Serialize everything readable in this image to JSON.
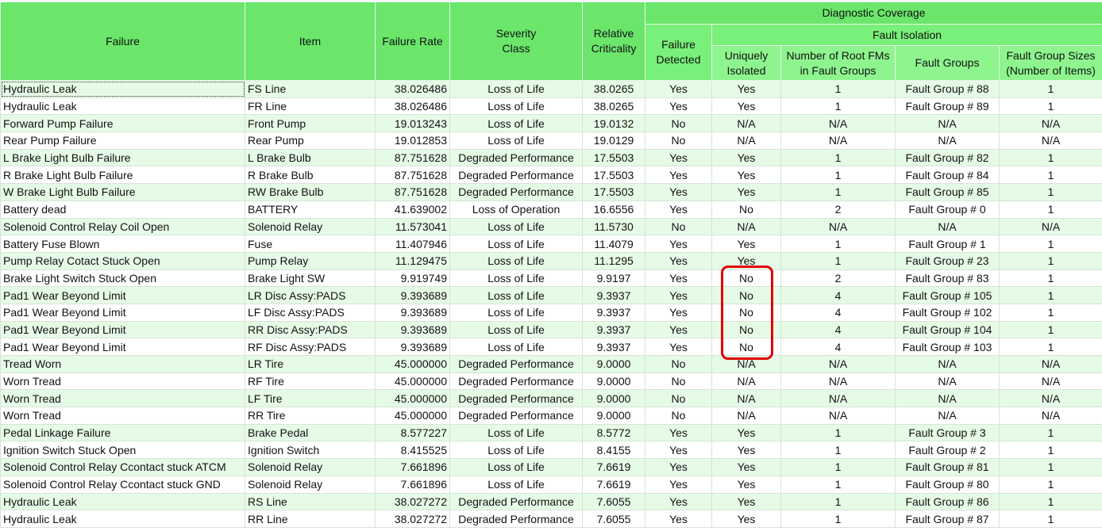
{
  "header": {
    "failure": "Failure",
    "item": "Item",
    "failure_rate": "Failure Rate",
    "severity_class": "Severity Class",
    "relative_criticality": "Relative Criticality",
    "diagnostic_coverage": "Diagnostic Coverage",
    "failure_detected": "Failure Detected",
    "fault_isolation": "Fault Isolation",
    "uniquely_isolated": "Uniquely Isolated",
    "num_root_fms": "Number of Root FMs in Fault Groups",
    "fault_groups": "Fault Groups",
    "fault_group_sizes": "Fault Group Sizes (Number of Items)"
  },
  "colors": {
    "header": "#6be66b",
    "row_alt": "#e6fbe6",
    "highlight": "#e00000"
  },
  "rows": [
    [
      "Hydraulic Leak",
      "FS Line",
      "38.026486",
      "Loss of Life",
      "38.0265",
      "Yes",
      "Yes",
      "1",
      "Fault Group # 88",
      "1"
    ],
    [
      "Hydraulic Leak",
      "FR Line",
      "38.026486",
      "Loss of Life",
      "38.0265",
      "Yes",
      "Yes",
      "1",
      "Fault Group # 89",
      "1"
    ],
    [
      "Forward Pump Failure",
      "Front Pump",
      "19.013243",
      "Loss of Life",
      "19.0132",
      "No",
      "N/A",
      "N/A",
      "N/A",
      "N/A"
    ],
    [
      "Rear Pump Failure",
      "Rear Pump",
      "19.012853",
      "Loss of Life",
      "19.0129",
      "No",
      "N/A",
      "N/A",
      "N/A",
      "N/A"
    ],
    [
      "L Brake Light Bulb Failure",
      "L Brake Bulb",
      "87.751628",
      "Degraded Performance",
      "17.5503",
      "Yes",
      "Yes",
      "1",
      "Fault Group # 82",
      "1"
    ],
    [
      "R Brake Light Bulb Failure",
      "R Brake Bulb",
      "87.751628",
      "Degraded Performance",
      "17.5503",
      "Yes",
      "Yes",
      "1",
      "Fault Group # 84",
      "1"
    ],
    [
      "W Brake Light Bulb Failure",
      "RW Brake Bulb",
      "87.751628",
      "Degraded Performance",
      "17.5503",
      "Yes",
      "Yes",
      "1",
      "Fault Group # 85",
      "1"
    ],
    [
      "Battery dead",
      "BATTERY",
      "41.639002",
      "Loss of Operation",
      "16.6556",
      "Yes",
      "No",
      "2",
      "Fault Group # 0",
      "1"
    ],
    [
      "Solenoid Control Relay Coil Open",
      "Solenoid Relay",
      "11.573041",
      "Loss of Life",
      "11.5730",
      "No",
      "N/A",
      "N/A",
      "N/A",
      "N/A"
    ],
    [
      "Battery Fuse Blown",
      "Fuse",
      "11.407946",
      "Loss of Life",
      "11.4079",
      "Yes",
      "Yes",
      "1",
      "Fault Group # 1",
      "1"
    ],
    [
      "Pump Relay Cotact Stuck Open",
      "Pump Relay",
      "11.129475",
      "Loss of Life",
      "11.1295",
      "Yes",
      "Yes",
      "1",
      "Fault Group # 23",
      "1"
    ],
    [
      "Brake Light Switch Stuck Open",
      "Brake Light SW",
      "9.919749",
      "Loss of Life",
      "9.9197",
      "Yes",
      "No",
      "2",
      "Fault Group # 83",
      "1"
    ],
    [
      "Pad1 Wear Beyond Limit",
      "LR Disc Assy:PADS",
      "9.393689",
      "Loss of Life",
      "9.3937",
      "Yes",
      "No",
      "4",
      "Fault Group # 105",
      "1"
    ],
    [
      "Pad1 Wear Beyond Limit",
      "LF Disc Assy:PADS",
      "9.393689",
      "Loss of Life",
      "9.3937",
      "Yes",
      "No",
      "4",
      "Fault Group # 102",
      "1"
    ],
    [
      "Pad1 Wear Beyond Limit",
      "RR Disc Assy:PADS",
      "9.393689",
      "Loss of Life",
      "9.3937",
      "Yes",
      "No",
      "4",
      "Fault Group # 104",
      "1"
    ],
    [
      "Pad1 Wear Beyond Limit",
      "RF Disc Assy:PADS",
      "9.393689",
      "Loss of Life",
      "9.3937",
      "Yes",
      "No",
      "4",
      "Fault Group # 103",
      "1"
    ],
    [
      "Tread Worn",
      "LR Tire",
      "45.000000",
      "Degraded Performance",
      "9.0000",
      "No",
      "N/A",
      "N/A",
      "N/A",
      "N/A"
    ],
    [
      "Worn Tread",
      "RF Tire",
      "45.000000",
      "Degraded Performance",
      "9.0000",
      "No",
      "N/A",
      "N/A",
      "N/A",
      "N/A"
    ],
    [
      "Worn Tread",
      "LF Tire",
      "45.000000",
      "Degraded Performance",
      "9.0000",
      "No",
      "N/A",
      "N/A",
      "N/A",
      "N/A"
    ],
    [
      "Worn Tread",
      "RR Tire",
      "45.000000",
      "Degraded Performance",
      "9.0000",
      "No",
      "N/A",
      "N/A",
      "N/A",
      "N/A"
    ],
    [
      "Pedal Linkage Failure",
      "Brake Pedal",
      "8.577227",
      "Loss of Life",
      "8.5772",
      "Yes",
      "Yes",
      "1",
      "Fault Group # 3",
      "1"
    ],
    [
      "Ignition Switch Stuck Open",
      "Ignition Switch",
      "8.415525",
      "Loss of Life",
      "8.4155",
      "Yes",
      "Yes",
      "1",
      "Fault Group # 2",
      "1"
    ],
    [
      "Solenoid Control Relay Ccontact stuck ATCM",
      "Solenoid Relay",
      "7.661896",
      "Loss of Life",
      "7.6619",
      "Yes",
      "Yes",
      "1",
      "Fault Group # 81",
      "1"
    ],
    [
      "Solenoid Control Relay Ccontact stuck GND",
      "Solenoid Relay",
      "7.661896",
      "Loss of Life",
      "7.6619",
      "Yes",
      "Yes",
      "1",
      "Fault Group # 80",
      "1"
    ],
    [
      "Hydraulic Leak",
      "RS Line",
      "38.027272",
      "Degraded Performance",
      "7.6055",
      "Yes",
      "Yes",
      "1",
      "Fault Group # 86",
      "1"
    ],
    [
      "Hydraulic Leak",
      "RR Line",
      "38.027272",
      "Degraded Performance",
      "7.6055",
      "Yes",
      "Yes",
      "1",
      "Fault Group # 87",
      "1"
    ]
  ]
}
